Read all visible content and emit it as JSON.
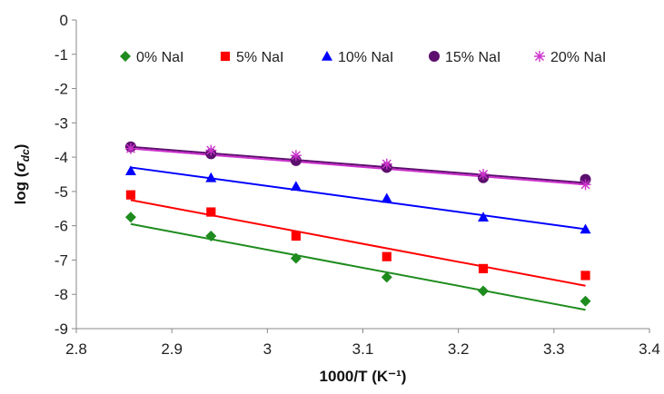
{
  "chart_data": {
    "type": "scatter",
    "title": "",
    "xlabel": "1000/T (K⁻¹)",
    "ylabel_prefix": "log (",
    "ylabel_symbol": "σ",
    "ylabel_subscript": "dc",
    "ylabel_suffix": ")",
    "xlim": [
      2.8,
      3.4
    ],
    "ylim": [
      -9,
      0
    ],
    "xticks": [
      "2.8",
      "2.9",
      "3",
      "3.1",
      "3.2",
      "3.3",
      "3.4"
    ],
    "yticks": [
      "0",
      "-1",
      "-2",
      "-3",
      "-4",
      "-5",
      "-6",
      "-7",
      "-8",
      "-9"
    ],
    "grid": false,
    "legend_position": "top",
    "x": [
      2.857,
      2.941,
      3.03,
      3.125,
      3.226,
      3.333
    ],
    "series": [
      {
        "name": "0% NaI",
        "marker": "diamond",
        "color": "#1e8c1e",
        "values": [
          -5.75,
          -6.3,
          -6.95,
          -7.5,
          -7.9,
          -8.2
        ],
        "fit": [
          -5.95,
          -8.45
        ]
      },
      {
        "name": "5% NaI",
        "marker": "square",
        "color": "#ff0000",
        "values": [
          -5.1,
          -5.6,
          -6.3,
          -6.9,
          -7.25,
          -7.45
        ],
        "fit": [
          -5.25,
          -7.75
        ]
      },
      {
        "name": "10% NaI",
        "marker": "triangle",
        "color": "#0000ff",
        "values": [
          -4.4,
          -4.6,
          -4.85,
          -5.2,
          -5.75,
          -6.1
        ],
        "fit": [
          -4.3,
          -6.1
        ]
      },
      {
        "name": "15% NaI",
        "marker": "circle",
        "color": "#5c0f6e",
        "values": [
          -3.7,
          -3.9,
          -4.1,
          -4.3,
          -4.6,
          -4.65
        ],
        "fit": [
          -3.7,
          -4.75
        ]
      },
      {
        "name": "20% NaI",
        "marker": "star",
        "color": "#cc33cc",
        "values": [
          -3.75,
          -3.8,
          -3.95,
          -4.2,
          -4.5,
          -4.8
        ],
        "fit": [
          -3.75,
          -4.8
        ]
      }
    ]
  }
}
